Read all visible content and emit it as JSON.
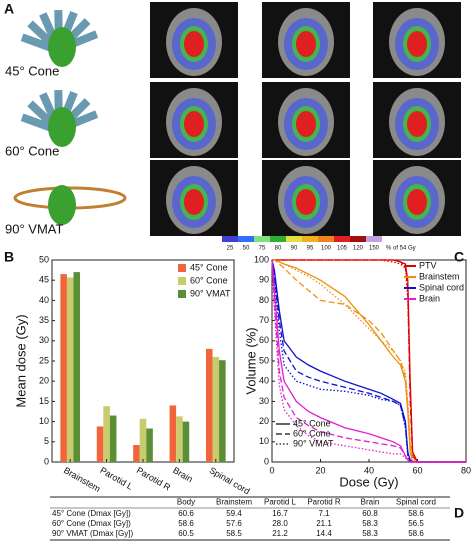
{
  "panel_labels": [
    "A",
    "B",
    "C",
    "D"
  ],
  "panel_a": {
    "rows": [
      "45° Cone",
      "60° Cone",
      "90° VMAT"
    ],
    "colorbar": {
      "ticks": [
        25,
        50,
        75,
        80,
        90,
        95,
        100,
        105,
        120,
        150
      ],
      "colors": [
        "#4040d0",
        "#3070ff",
        "#80e080",
        "#30b030",
        "#e0e040",
        "#f0b020",
        "#f08020",
        "#e02020",
        "#a01010",
        "#c0a0e0"
      ],
      "unit": "% of 54 Gy"
    }
  },
  "chart_data": [
    {
      "type": "bar",
      "ylabel": "Mean dose (Gy)",
      "categories": [
        "Brainstem",
        "Parotid L",
        "Parotid R",
        "Brain",
        "Spinal cord"
      ],
      "series": [
        {
          "name": "45° Cone",
          "color": "#f0653c",
          "values": [
            46.5,
            8.8,
            4.2,
            14,
            28
          ]
        },
        {
          "name": "60° Cone",
          "color": "#c9cc6e",
          "values": [
            45.7,
            13.8,
            10.7,
            11.3,
            26
          ]
        },
        {
          "name": "90° VMAT",
          "color": "#5b8f35",
          "values": [
            47,
            11.5,
            8.3,
            10,
            25.2
          ]
        }
      ],
      "ylim": [
        0,
        50
      ],
      "yticks": [
        0,
        5,
        10,
        15,
        20,
        25,
        30,
        35,
        40,
        45,
        50
      ]
    },
    {
      "type": "line",
      "xlabel": "Dose (Gy)",
      "ylabel": "Volume (%)",
      "x": [
        0,
        1,
        3,
        5,
        10,
        15,
        20,
        30,
        40,
        45,
        50,
        53,
        55,
        56,
        57,
        58,
        60,
        80
      ],
      "xlim": [
        0,
        80
      ],
      "xticks": [
        0,
        20,
        40,
        60,
        80
      ],
      "ylim": [
        0,
        100
      ],
      "yticks": [
        0,
        10,
        20,
        30,
        40,
        50,
        60,
        70,
        80,
        90,
        100
      ],
      "plans": [
        {
          "name": "45° Cone",
          "dash": "solid"
        },
        {
          "name": "60° Cone",
          "dash": "dashed"
        },
        {
          "name": "90° VMAT",
          "dash": "dotted"
        }
      ],
      "structures": [
        {
          "name": "PTV",
          "color": "#e00000",
          "series": [
            {
              "values": [
                100,
                100,
                100,
                100,
                100,
                100,
                100,
                100,
                100,
                100,
                100,
                99,
                98,
                90,
                40,
                5,
                0,
                0
              ]
            },
            {
              "values": [
                100,
                100,
                100,
                100,
                100,
                100,
                100,
                100,
                100,
                100,
                100,
                99,
                97,
                85,
                30,
                3,
                0,
                0
              ]
            },
            {
              "values": [
                100,
                100,
                100,
                100,
                100,
                100,
                100,
                100,
                100,
                100,
                99,
                98,
                96,
                80,
                35,
                4,
                0,
                0
              ]
            }
          ]
        },
        {
          "name": "Brainstem",
          "color": "#f09010",
          "series": [
            {
              "values": [
                100,
                100,
                99,
                98,
                96,
                93,
                90,
                82,
                68,
                60,
                52,
                48,
                40,
                25,
                5,
                0,
                0,
                0
              ]
            },
            {
              "values": [
                100,
                100,
                98,
                96,
                90,
                85,
                80,
                78,
                70,
                64,
                55,
                50,
                42,
                28,
                8,
                1,
                0,
                0
              ]
            },
            {
              "values": [
                100,
                100,
                99,
                98,
                95,
                92,
                88,
                78,
                66,
                60,
                55,
                50,
                44,
                30,
                10,
                2,
                0,
                0
              ]
            }
          ]
        },
        {
          "name": "Spinal cord",
          "color": "#1010d0",
          "series": [
            {
              "values": [
                100,
                95,
                75,
                60,
                52,
                48,
                45,
                40,
                36,
                34,
                31,
                29,
                20,
                5,
                1,
                0,
                0,
                0
              ]
            },
            {
              "values": [
                100,
                92,
                70,
                55,
                45,
                42,
                40,
                37,
                34,
                32,
                30,
                28,
                18,
                4,
                0,
                0,
                0,
                0
              ]
            },
            {
              "values": [
                100,
                90,
                65,
                48,
                40,
                38,
                36,
                35,
                33,
                31,
                30,
                28,
                17,
                3,
                0,
                0,
                0,
                0
              ]
            }
          ]
        },
        {
          "name": "Brain",
          "color": "#e020d0",
          "series": [
            {
              "values": [
                100,
                85,
                55,
                40,
                30,
                25,
                22,
                17,
                14,
                12,
                10,
                8,
                3,
                1,
                0,
                0,
                0,
                0
              ]
            },
            {
              "values": [
                100,
                80,
                45,
                32,
                22,
                18,
                15,
                12,
                10,
                9,
                8,
                7,
                3,
                1,
                0,
                0,
                0,
                0
              ]
            },
            {
              "values": [
                100,
                75,
                38,
                26,
                18,
                13,
                10,
                8,
                6,
                5,
                4,
                4,
                2,
                1,
                0,
                0,
                0,
                0
              ]
            }
          ]
        }
      ]
    }
  ],
  "table": {
    "header": [
      "Body",
      "Brainstem",
      "Parotid L",
      "Parotid R",
      "Brain",
      "Spinal cord"
    ],
    "rows": [
      [
        "45° Cone (Dmax [Gy])",
        "60.6",
        "59.4",
        "16.7",
        "7.1",
        "60.8",
        "58.6"
      ],
      [
        "60° Cone (Dmax [Gy])",
        "58.6",
        "57.6",
        "28.0",
        "21.1",
        "58.3",
        "56.5"
      ],
      [
        "90° VMAT (Dmax [Gy])",
        "60.5",
        "58.5",
        "21.2",
        "14.4",
        "58.3",
        "58.6"
      ]
    ]
  }
}
